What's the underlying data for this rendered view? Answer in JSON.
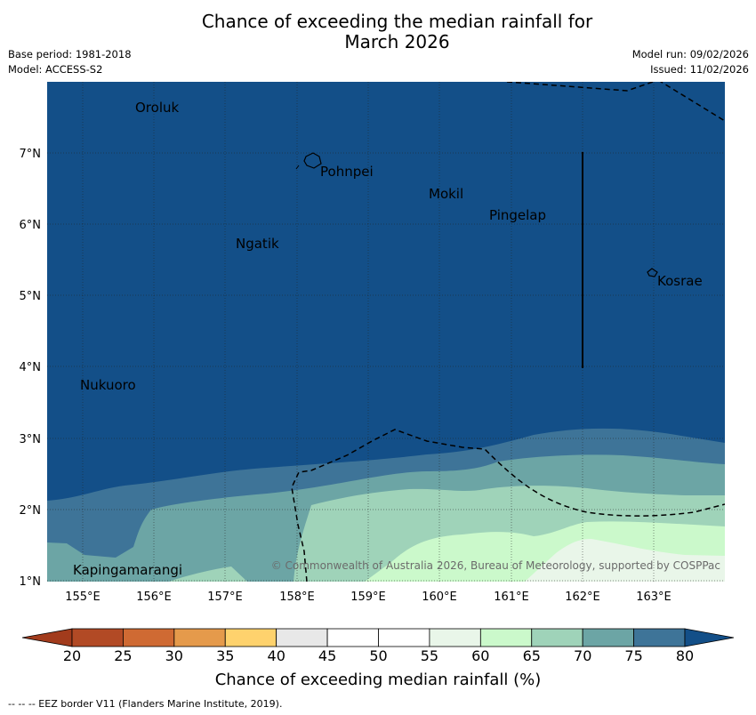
{
  "header": {
    "title_line1": "Chance of exceeding the median rainfall for",
    "title_line2": "March 2026",
    "base_period": "Base period: 1981-2018",
    "model": "Model: ACCESS-S2",
    "model_run": "Model run: 09/02/2026",
    "issued": "Issued: 11/02/2026"
  },
  "map": {
    "lon_ticks": [
      "155°E",
      "156°E",
      "157°E",
      "158°E",
      "159°E",
      "160°E",
      "161°E",
      "162°E",
      "163°E"
    ],
    "lat_ticks": [
      "7°N",
      "6°N",
      "5°N",
      "4°N",
      "3°N",
      "2°N",
      "1°N"
    ],
    "places": [
      "Oroluk",
      "Pohnpei",
      "Mokil",
      "Pingelap",
      "Ngatik",
      "Kosrae",
      "Nukuoro",
      "Kapingamarangi"
    ],
    "copyright": "© Commonwealth of Australia 2026, Bureau of Meteorology, supported by COSPPac",
    "colors": {
      "band_75_80": "#3e7498",
      "band_80_plus": "#134f88",
      "band_70_75": "#6ca5a5",
      "band_65_70": "#9fd3b9",
      "band_60_65": "#cbf9cb",
      "band_55_60": "#e9f6e9"
    }
  },
  "colorbar": {
    "ticks": [
      "20",
      "25",
      "30",
      "35",
      "40",
      "45",
      "50",
      "55",
      "60",
      "65",
      "70",
      "75",
      "80"
    ],
    "colors": [
      "#b24a25",
      "#cf6a33",
      "#e59a4b",
      "#fed26d",
      "#e8e8e8",
      "#ffffff",
      "#ffffff",
      "#e9f6e9",
      "#cbf9cb",
      "#9fd3b9",
      "#6ca5a5",
      "#3e7498"
    ],
    "under_color": "#a23b1c",
    "over_color": "#134f88",
    "title": "Chance of exceeding median rainfall (%)"
  },
  "footnote": "--  --  -- EEZ border V11 (Flanders Marine Institute, 2019)."
}
